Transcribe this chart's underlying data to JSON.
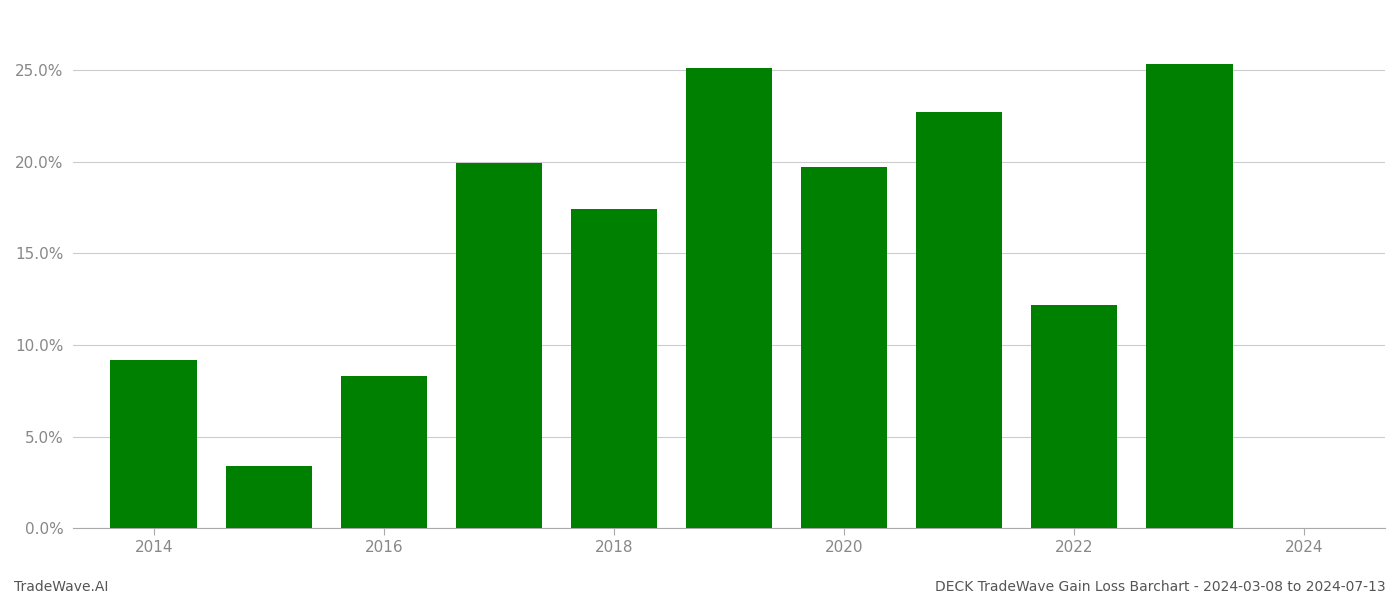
{
  "years": [
    2014,
    2015,
    2016,
    2017,
    2018,
    2019,
    2020,
    2021,
    2022,
    2023
  ],
  "values": [
    0.092,
    0.034,
    0.083,
    0.199,
    0.174,
    0.251,
    0.197,
    0.227,
    0.122,
    0.253
  ],
  "bar_color": "#008000",
  "background_color": "#ffffff",
  "grid_color": "#cccccc",
  "footer_left": "TradeWave.AI",
  "footer_right": "DECK TradeWave Gain Loss Barchart - 2024-03-08 to 2024-07-13",
  "ylim": [
    0,
    0.28
  ],
  "ytick_values": [
    0.0,
    0.05,
    0.1,
    0.15,
    0.2,
    0.25
  ],
  "ytick_labels": [
    "0.0%",
    "5.0%",
    "10.0%",
    "15.0%",
    "20.0%",
    "25.0%"
  ],
  "xtick_positions": [
    2014,
    2016,
    2018,
    2020,
    2022,
    2024
  ],
  "xlim_left": 2013.3,
  "xlim_right": 2024.7,
  "tick_fontsize": 11,
  "footer_fontsize": 10,
  "bar_width": 0.75
}
